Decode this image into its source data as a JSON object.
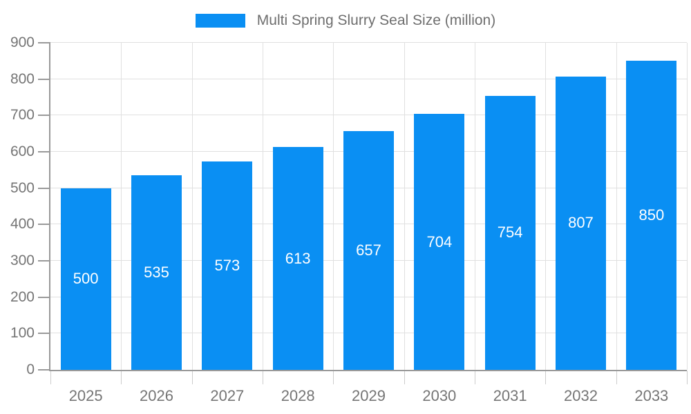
{
  "chart_data": {
    "type": "bar",
    "title": "Multi Spring Slurry Seal Size (million)",
    "legend": [
      "Multi Spring Slurry Seal Size (million)"
    ],
    "legend_position": "top-center",
    "categories": [
      "2025",
      "2026",
      "2027",
      "2028",
      "2029",
      "2030",
      "2031",
      "2032",
      "2033"
    ],
    "series": [
      {
        "name": "Multi Spring Slurry Seal Size (million)",
        "values": [
          500,
          535,
          573,
          613,
          657,
          704,
          754,
          807,
          850
        ]
      }
    ],
    "bar_value_labels": [
      "500",
      "535",
      "573",
      "613",
      "657",
      "704",
      "754",
      "807",
      "850"
    ],
    "xlabel": "",
    "ylabel": "",
    "ylim": [
      0,
      900
    ],
    "yticks": [
      0,
      100,
      200,
      300,
      400,
      500,
      600,
      700,
      800,
      900
    ],
    "grid": true,
    "colors": {
      "bar": "#0a8ff3",
      "bar_label_text": "#ffffff",
      "grid_line": "#e0e0e0",
      "axis_line": "#999999",
      "axis_text": "#757575",
      "legend_text": "#6e6e6e",
      "background": "#ffffff"
    }
  }
}
